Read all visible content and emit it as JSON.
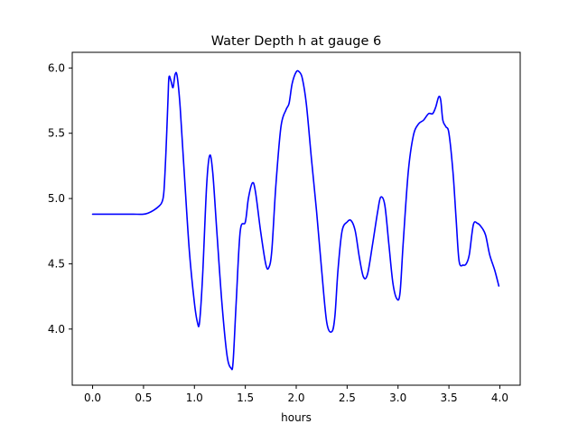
{
  "chart_data": {
    "type": "line",
    "title": "Water Depth h at gauge 6",
    "xlabel": "hours",
    "ylabel": "",
    "xlim": [
      -0.2,
      4.2
    ],
    "ylim": [
      3.57,
      6.12
    ],
    "x_ticks": [
      0.0,
      0.5,
      1.0,
      1.5,
      2.0,
      2.5,
      3.0,
      3.5,
      4.0
    ],
    "x_tick_labels": [
      "0.0",
      "0.5",
      "1.0",
      "1.5",
      "2.0",
      "2.5",
      "3.0",
      "3.5",
      "4.0"
    ],
    "y_ticks": [
      4.0,
      4.5,
      5.0,
      5.5,
      6.0
    ],
    "y_tick_labels": [
      "4.0",
      "4.5",
      "5.0",
      "5.5",
      "6.0"
    ],
    "grid": false,
    "legend": null,
    "series": [
      {
        "color": "#0000ff",
        "x": [
          0.0,
          0.1,
          0.2,
          0.3,
          0.4,
          0.5,
          0.55,
          0.6,
          0.65,
          0.68,
          0.7,
          0.72,
          0.74,
          0.75,
          0.77,
          0.79,
          0.81,
          0.83,
          0.86,
          0.9,
          0.95,
          1.0,
          1.03,
          1.05,
          1.08,
          1.12,
          1.15,
          1.18,
          1.22,
          1.27,
          1.32,
          1.36,
          1.38,
          1.41,
          1.45,
          1.5,
          1.53,
          1.57,
          1.6,
          1.65,
          1.7,
          1.73,
          1.76,
          1.8,
          1.85,
          1.9,
          1.93,
          1.96,
          2.0,
          2.03,
          2.06,
          2.1,
          2.15,
          2.2,
          2.25,
          2.3,
          2.35,
          2.38,
          2.41,
          2.45,
          2.5,
          2.54,
          2.58,
          2.62,
          2.66,
          2.7,
          2.75,
          2.8,
          2.83,
          2.87,
          2.91,
          2.95,
          2.99,
          3.02,
          3.05,
          3.1,
          3.15,
          3.2,
          3.25,
          3.3,
          3.34,
          3.37,
          3.4,
          3.42,
          3.44,
          3.47,
          3.5,
          3.54,
          3.57,
          3.6,
          3.64,
          3.67,
          3.7,
          3.74,
          3.78,
          3.82,
          3.86,
          3.9,
          3.95,
          3.99
        ],
        "y": [
          4.88,
          4.88,
          4.88,
          4.88,
          4.88,
          4.88,
          4.89,
          4.91,
          4.94,
          4.97,
          5.05,
          5.35,
          5.75,
          5.93,
          5.9,
          5.85,
          5.95,
          5.94,
          5.7,
          5.2,
          4.6,
          4.2,
          4.05,
          4.05,
          4.4,
          5.1,
          5.33,
          5.2,
          4.75,
          4.2,
          3.8,
          3.7,
          3.75,
          4.2,
          4.75,
          4.82,
          5.0,
          5.12,
          5.05,
          4.75,
          4.5,
          4.47,
          4.6,
          5.1,
          5.55,
          5.68,
          5.73,
          5.88,
          5.97,
          5.97,
          5.92,
          5.72,
          5.3,
          4.9,
          4.45,
          4.05,
          3.98,
          4.1,
          4.45,
          4.75,
          4.82,
          4.83,
          4.75,
          4.55,
          4.4,
          4.42,
          4.65,
          4.9,
          5.01,
          4.95,
          4.65,
          4.35,
          4.23,
          4.28,
          4.65,
          5.2,
          5.48,
          5.57,
          5.6,
          5.65,
          5.65,
          5.7,
          5.78,
          5.75,
          5.6,
          5.55,
          5.5,
          5.2,
          4.85,
          4.52,
          4.49,
          4.5,
          4.57,
          4.8,
          4.81,
          4.78,
          4.72,
          4.57,
          4.45,
          4.33
        ]
      }
    ]
  }
}
